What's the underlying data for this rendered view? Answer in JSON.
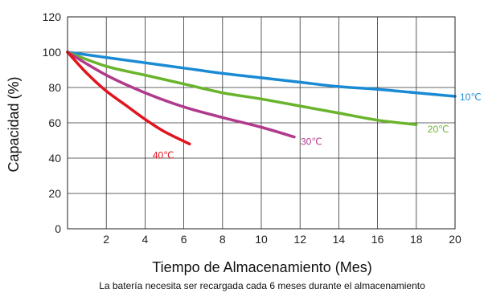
{
  "chart_data": {
    "type": "line",
    "xlabel": "Tiempo de Almacenamiento (Mes)",
    "ylabel": "Capacidad (%)",
    "note": "La batería necesita ser recargada cada 6 meses durante el almacenamiento",
    "xlim": [
      0,
      20
    ],
    "ylim": [
      0,
      120
    ],
    "x_ticks": [
      2,
      4,
      6,
      8,
      10,
      12,
      14,
      16,
      18,
      20
    ],
    "y_ticks": [
      0,
      20,
      40,
      60,
      80,
      100,
      120
    ],
    "grid": true,
    "series": [
      {
        "name": "10℃",
        "color": "#1a8ad4",
        "x": [
          0,
          2,
          4,
          6,
          8,
          10,
          12,
          14,
          16,
          18,
          20
        ],
        "y": [
          100,
          97,
          94,
          91,
          88,
          85.5,
          83,
          80.5,
          79,
          77,
          75
        ]
      },
      {
        "name": "20℃",
        "color": "#6ab42d",
        "x": [
          0,
          2,
          4,
          6,
          8,
          10,
          12,
          14,
          16,
          18
        ],
        "y": [
          100,
          92,
          87,
          82,
          77,
          73.5,
          69.5,
          65.5,
          61.5,
          59
        ]
      },
      {
        "name": "30℃",
        "color": "#b03a8c",
        "x": [
          0,
          2,
          4,
          6,
          8,
          10,
          11.7
        ],
        "y": [
          100,
          87,
          77,
          69,
          63,
          57.5,
          52
        ]
      },
      {
        "name": "40℃",
        "color": "#e2141f",
        "x": [
          0,
          1,
          2,
          3,
          4,
          5,
          6.3
        ],
        "y": [
          100,
          88,
          78,
          70,
          62,
          55,
          48
        ]
      }
    ]
  }
}
